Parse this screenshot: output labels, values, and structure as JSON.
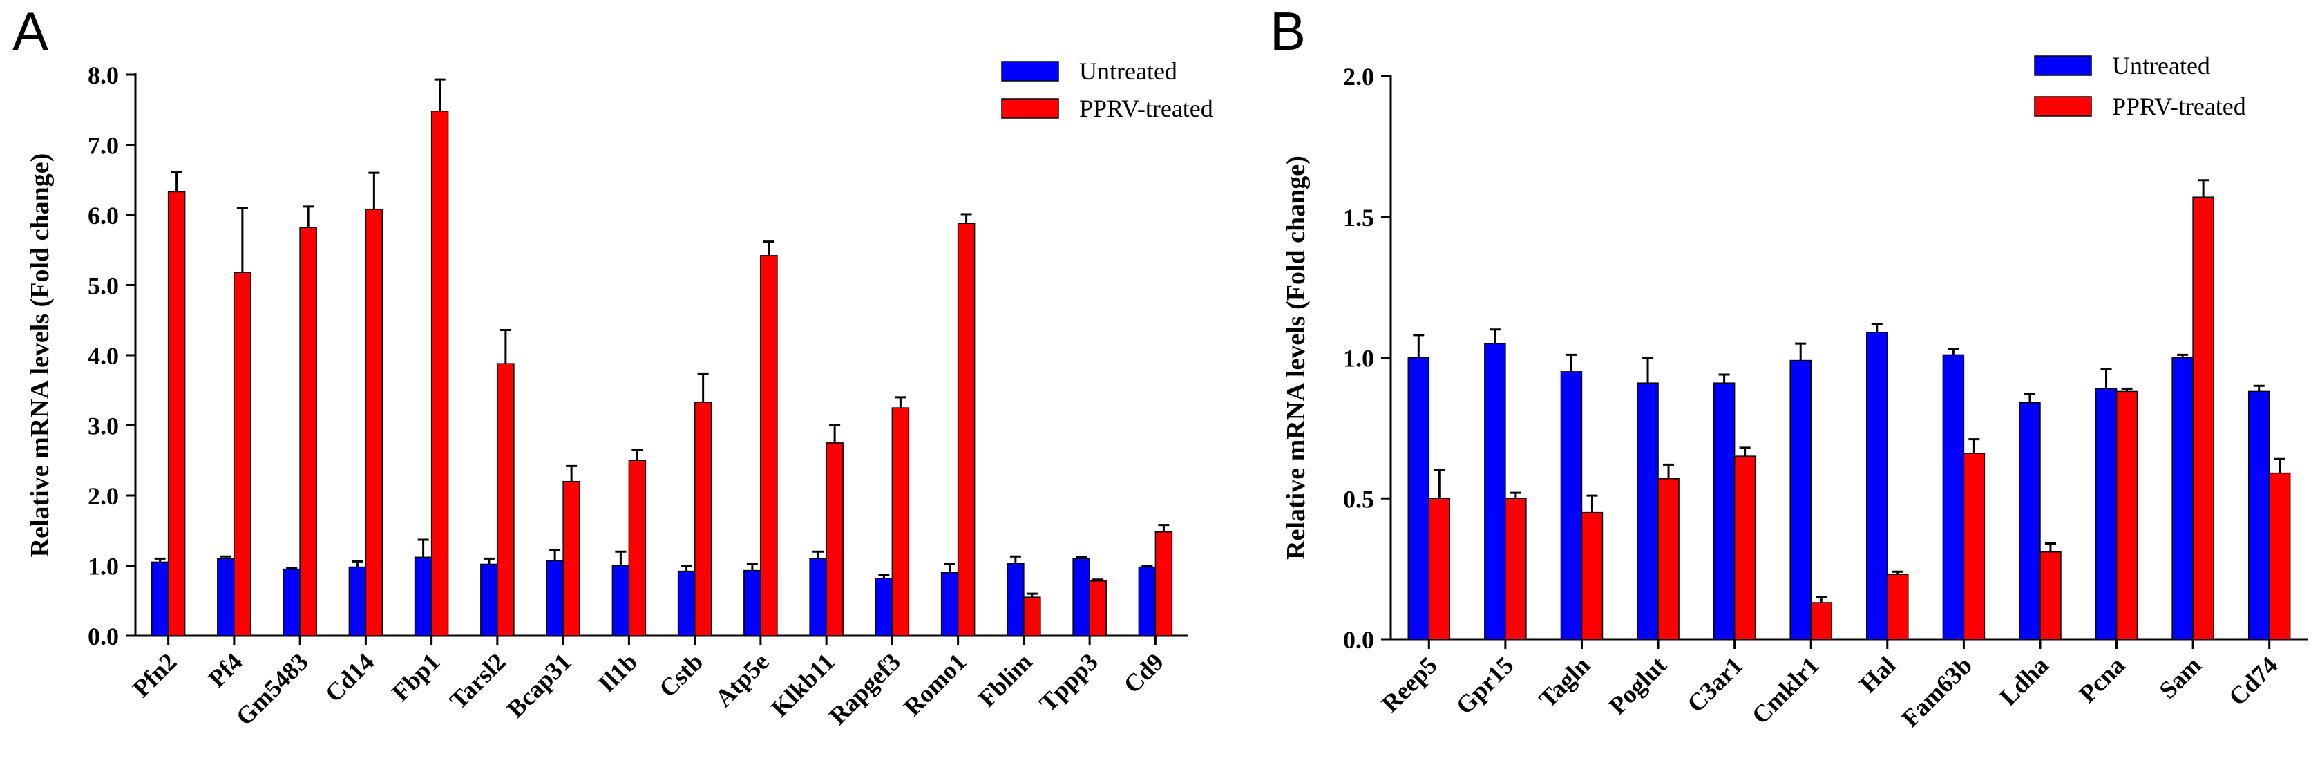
{
  "chart_data": [
    {
      "type": "bar",
      "panel": "A",
      "title": "",
      "xlabel": "",
      "ylabel": "Relative mRNA levels (Fold change)",
      "ylim": [
        0,
        8
      ],
      "yticks": [
        0,
        1,
        2,
        3,
        4,
        5,
        6,
        7,
        8
      ],
      "ytick_labels": [
        "0.0",
        "1.0",
        "2.0",
        "3.0",
        "4.0",
        "5.0",
        "6.0",
        "7.0",
        "8.0"
      ],
      "legend_position": "top-right",
      "categories": [
        "Pfn2",
        "Pf4",
        "Gm5483",
        "Cd14",
        "Fbp1",
        "Tarsl2",
        "Bcap31",
        "Il1b",
        "Cstb",
        "Atp5e",
        "Klkb11",
        "Rapgef3",
        "Romo1",
        "Fblim",
        "Tppp3",
        "Cd9"
      ],
      "series": [
        {
          "name": "Untreated",
          "color": "#0000ff",
          "values": [
            1.05,
            1.1,
            0.95,
            0.98,
            1.12,
            1.02,
            1.07,
            1.0,
            0.92,
            0.93,
            1.1,
            0.82,
            0.9,
            1.03,
            1.1,
            0.98
          ],
          "errors": [
            0.05,
            0.03,
            0.02,
            0.08,
            0.25,
            0.08,
            0.15,
            0.2,
            0.08,
            0.1,
            0.1,
            0.05,
            0.12,
            0.1,
            0.02,
            0.02
          ]
        },
        {
          "name": "PPRV-treated",
          "color": "#ff0000",
          "values": [
            6.33,
            5.18,
            5.82,
            6.08,
            7.48,
            3.88,
            2.2,
            2.5,
            3.33,
            5.42,
            2.75,
            3.25,
            5.88,
            0.55,
            0.78,
            1.48
          ],
          "errors": [
            0.28,
            0.92,
            0.3,
            0.52,
            0.45,
            0.48,
            0.22,
            0.15,
            0.4,
            0.2,
            0.25,
            0.15,
            0.13,
            0.05,
            0.02,
            0.1
          ]
        }
      ]
    },
    {
      "type": "bar",
      "panel": "B",
      "title": "",
      "xlabel": "",
      "ylabel": "Relative mRNA levels (Fold change)",
      "ylim": [
        0,
        2
      ],
      "yticks": [
        0,
        0.5,
        1,
        1.5,
        2
      ],
      "ytick_labels": [
        "0.0",
        "0.5",
        "1.0",
        "1.5",
        "2.0"
      ],
      "legend_position": "top-right",
      "categories": [
        "Reep5",
        "Gpr15",
        "Tagln",
        "Poglut",
        "C3ar1",
        "Cmklr1",
        "Hal",
        "Fam63b",
        "Ldha",
        "Pcna",
        "Sam",
        "Cd74"
      ],
      "series": [
        {
          "name": "Untreated",
          "color": "#0000ff",
          "values": [
            1.0,
            1.05,
            0.95,
            0.91,
            0.91,
            0.99,
            1.09,
            1.01,
            0.84,
            0.89,
            1.0,
            0.88
          ],
          "errors": [
            0.08,
            0.05,
            0.06,
            0.09,
            0.03,
            0.06,
            0.03,
            0.02,
            0.03,
            0.07,
            0.01,
            0.02
          ]
        },
        {
          "name": "PPRV-treated",
          "color": "#ff0000",
          "values": [
            0.5,
            0.5,
            0.45,
            0.57,
            0.65,
            0.13,
            0.23,
            0.66,
            0.31,
            0.88,
            1.57,
            0.59
          ],
          "errors": [
            0.1,
            0.02,
            0.06,
            0.05,
            0.03,
            0.02,
            0.01,
            0.05,
            0.03,
            0.01,
            0.06,
            0.05
          ]
        }
      ]
    }
  ]
}
